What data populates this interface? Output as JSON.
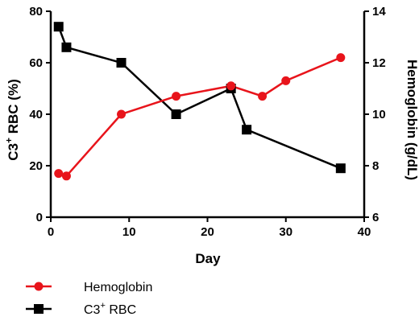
{
  "chart_data": {
    "type": "line",
    "xlabel": "Day",
    "ylabel_left": {
      "main": "C3",
      "sup": "+",
      "rest": " RBC (%)"
    },
    "ylabel_right": "Hemoglobin  (g/dL)",
    "xlim": [
      0,
      40
    ],
    "ylim_left": [
      0,
      80
    ],
    "ylim_right": [
      6,
      14
    ],
    "x_ticks": [
      0,
      10,
      20,
      30,
      40
    ],
    "y_ticks_left": [
      0,
      20,
      40,
      60,
      80
    ],
    "y_ticks_right": [
      6,
      8,
      10,
      12,
      14
    ],
    "grid": false,
    "legend_position": "bottom-left",
    "series": [
      {
        "name": "Hemoglobin",
        "axis": "right",
        "color": "#e8141b",
        "marker": "circle",
        "x": [
          1,
          2,
          9,
          16,
          23,
          27,
          30,
          37
        ],
        "y": [
          7.7,
          7.6,
          10.0,
          10.7,
          11.1,
          10.7,
          11.3,
          12.2
        ]
      },
      {
        "name": "C3",
        "name_sup": "+",
        "name_rest": " RBC",
        "axis": "left",
        "color": "#000000",
        "marker": "square",
        "x": [
          1,
          2,
          9,
          16,
          23,
          25,
          37
        ],
        "y": [
          74,
          66,
          60,
          40,
          50,
          34,
          19
        ]
      }
    ]
  }
}
